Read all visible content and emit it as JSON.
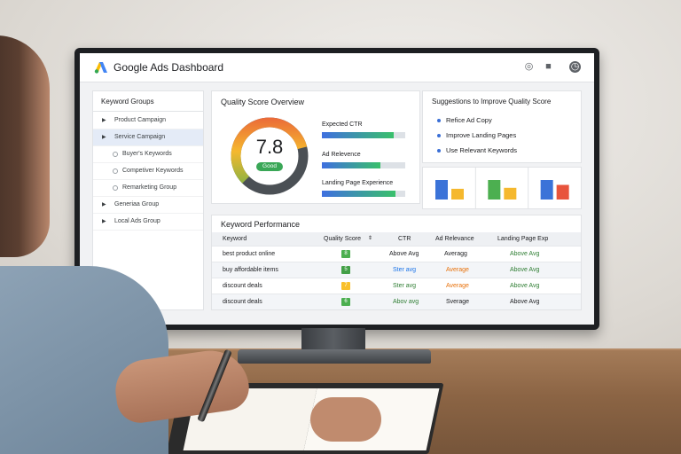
{
  "app": {
    "title": "Google Ads Dashboard"
  },
  "sidebar": {
    "title": "Keyword Groups",
    "items": [
      {
        "label": "Product Campaign",
        "level": 0,
        "active": false
      },
      {
        "label": "Service Campaign",
        "level": 0,
        "active": true
      },
      {
        "label": "Buyer's Keywords",
        "level": 1,
        "active": false
      },
      {
        "label": "Competiver Keywords",
        "level": 1,
        "active": false
      },
      {
        "label": "Remarketing Group",
        "level": 1,
        "active": false
      },
      {
        "label": "Generiaa Group",
        "level": 0,
        "active": false
      },
      {
        "label": "Local Ads Group",
        "level": 0,
        "active": false
      }
    ]
  },
  "quality": {
    "title": "Quality Score Overview",
    "score": "7.8",
    "badge": "Good",
    "metrics": [
      {
        "label": "Expected CTR",
        "fill": 0.86
      },
      {
        "label": "Ad Relevence",
        "fill": 0.7
      },
      {
        "label": "Landing Page Experience",
        "fill": 0.88
      }
    ]
  },
  "suggestions": {
    "title": "Suggestions to Improve Quality Score",
    "items": [
      "Refice Ad Copy",
      "Improve Landing Pages",
      "Use Relevant Keywords"
    ]
  },
  "keyword_performance": {
    "title": "Keyword Performance",
    "headers": [
      "Keyword",
      "Quality Score",
      "CTR",
      "Ad Relevance",
      "Landing Page Exp"
    ],
    "rows": [
      {
        "keyword": "best product online",
        "score": "8",
        "score_color": "#4caf50",
        "ctr": "Above Avg",
        "ctr_color": "#202124",
        "ad_rel": "Averagg",
        "ad_rel_color": "#202124",
        "lp": "Above Avg",
        "lp_color": "#2e7d32"
      },
      {
        "keyword": "buy affordable items",
        "score": "5",
        "score_color": "#43a047",
        "ctr": "Ster avg",
        "ctr_color": "#1a73e8",
        "ad_rel": "Average",
        "ad_rel_color": "#e8710a",
        "lp": "Above Avg",
        "lp_color": "#2e7d32"
      },
      {
        "keyword": "discount deals",
        "score": "7",
        "score_color": "#f9c02a",
        "ctr": "Ster avg",
        "ctr_color": "#2e7d32",
        "ad_rel": "Average",
        "ad_rel_color": "#e8710a",
        "lp": "Above Avg",
        "lp_color": "#2e7d32"
      },
      {
        "keyword": "discount deals",
        "score": "6",
        "score_color": "#4caf50",
        "ctr": "Abov avg",
        "ctr_color": "#2e7d32",
        "ad_rel": "Sverage",
        "ad_rel_color": "#202124",
        "lp": "Above Avg",
        "lp_color": "#202124"
      }
    ]
  },
  "mini_charts": [
    {
      "values": [
        1.0,
        0.55
      ],
      "colors": [
        "#3b73d8",
        "#f5b82e"
      ]
    },
    {
      "values": [
        1.0,
        0.6
      ],
      "colors": [
        "#4caf50",
        "#f5b82e"
      ]
    },
    {
      "values": [
        1.0,
        0.75
      ],
      "colors": [
        "#3b73d8",
        "#e8543c"
      ]
    }
  ]
}
